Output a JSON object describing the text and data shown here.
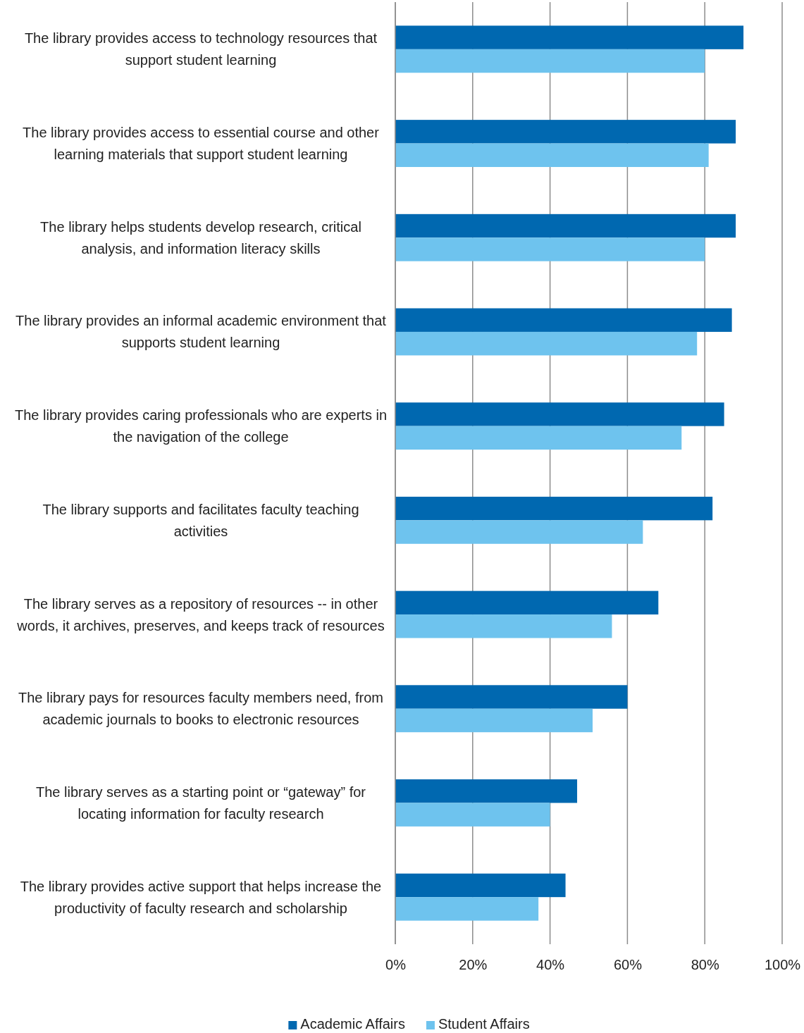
{
  "chart_data": {
    "type": "bar",
    "orientation": "horizontal",
    "categories": [
      "The library provides access to technology resources that support student learning",
      "The library provides access to essential course and other learning materials that support student learning",
      "The library helps students develop research, critical analysis, and information literacy skills",
      "The library provides an informal academic environment that supports student learning",
      "The library provides caring professionals who are experts in the navigation of the college",
      "The library supports and facilitates faculty teaching activities",
      "The library serves as a repository of resources -- in other words, it archives, preserves, and keeps track of resources",
      "The library pays for resources faculty members need, from academic journals to books to electronic resources",
      "The library serves as a starting point or “gateway” for locating information for faculty research",
      "The library provides active support that helps increase the productivity of faculty research and scholarship"
    ],
    "series": [
      {
        "name": "Academic Affairs",
        "color": "#0068b0",
        "values": [
          90,
          88,
          88,
          87,
          85,
          82,
          68,
          60,
          47,
          44
        ]
      },
      {
        "name": "Student Affairs",
        "color": "#6ec3ee",
        "values": [
          80,
          81,
          80,
          78,
          74,
          64,
          56,
          51,
          40,
          37
        ]
      }
    ],
    "xlim": [
      0,
      100
    ],
    "xticks": [
      {
        "value": 0,
        "label": "0%"
      },
      {
        "value": 20,
        "label": "20%"
      },
      {
        "value": 40,
        "label": "40%"
      },
      {
        "value": 60,
        "label": "60%"
      },
      {
        "value": 80,
        "label": "80%"
      },
      {
        "value": 100,
        "label": "100%"
      }
    ],
    "grid": "x",
    "legend": "bottom"
  }
}
